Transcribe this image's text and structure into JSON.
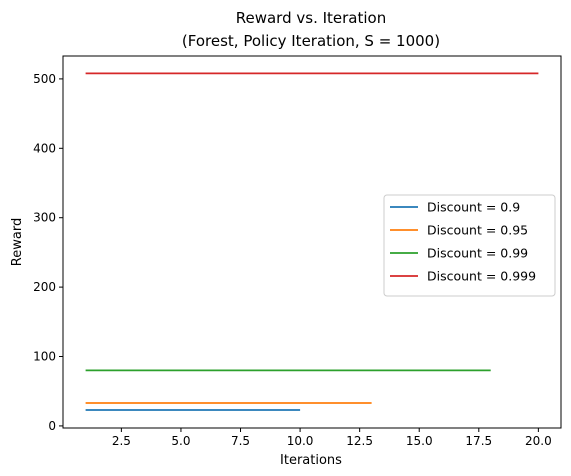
{
  "chart_data": {
    "type": "line",
    "title": "Reward vs. Iteration",
    "subtitle": "(Forest, Policy Iteration, S = 1000)",
    "xlabel": "Iterations",
    "ylabel": "Reward",
    "xlim": [
      0.05,
      20.95
    ],
    "ylim": [
      -3,
      533
    ],
    "xticks": [
      2.5,
      5.0,
      7.5,
      10.0,
      12.5,
      15.0,
      17.5,
      20.0
    ],
    "xtick_labels": [
      "2.5",
      "5.0",
      "7.5",
      "10.0",
      "12.5",
      "15.0",
      "17.5",
      "20.0"
    ],
    "yticks": [
      0,
      100,
      200,
      300,
      400,
      500
    ],
    "ytick_labels": [
      "0",
      "100",
      "200",
      "300",
      "400",
      "500"
    ],
    "grid": false,
    "legend_position": "center-right",
    "series": [
      {
        "name": "Discount = 0.9",
        "color": "#1f77b4",
        "x": [
          1,
          10
        ],
        "y": [
          23,
          23
        ]
      },
      {
        "name": "Discount = 0.95",
        "color": "#ff7f0e",
        "x": [
          1,
          13
        ],
        "y": [
          33,
          33
        ]
      },
      {
        "name": "Discount = 0.99",
        "color": "#2ca02c",
        "x": [
          1,
          18
        ],
        "y": [
          80,
          80
        ]
      },
      {
        "name": "Discount = 0.999",
        "color": "#d62728",
        "x": [
          1,
          20
        ],
        "y": [
          508,
          508
        ]
      }
    ]
  }
}
